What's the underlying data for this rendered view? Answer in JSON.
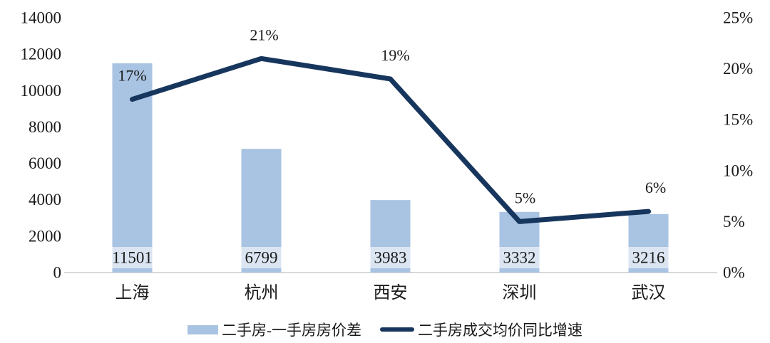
{
  "chart_data": {
    "type": "bar+line combo",
    "categories": [
      "上海",
      "杭州",
      "西安",
      "深圳",
      "武汉"
    ],
    "series": [
      {
        "name": "二手房-一手房房价差",
        "type": "bar",
        "axis": "left",
        "values": [
          11501,
          6799,
          3983,
          3332,
          3216
        ],
        "value_labels": [
          "11501",
          "6799",
          "3983",
          "3332",
          "3216"
        ],
        "color": "#a9c3e2",
        "label_bg": "#dbe5f2"
      },
      {
        "name": "二手房成交均价同比增速",
        "type": "line",
        "axis": "right",
        "values": [
          17,
          21,
          19,
          5,
          6
        ],
        "value_labels": [
          "17%",
          "21%",
          "19%",
          "5%",
          "6%"
        ],
        "color": "#17365d"
      }
    ],
    "left_axis": {
      "min": 0,
      "max": 14000,
      "step": 2000,
      "tick_labels": [
        "0",
        "2000",
        "4000",
        "6000",
        "8000",
        "10000",
        "12000",
        "14000"
      ]
    },
    "right_axis": {
      "min": 0,
      "max": 25,
      "step": 5,
      "tick_labels": [
        "0%",
        "5%",
        "10%",
        "15%",
        "20%",
        "25%"
      ]
    },
    "grid": false,
    "legend_position": "bottom",
    "axis_line_color": "#d9d9d9"
  }
}
